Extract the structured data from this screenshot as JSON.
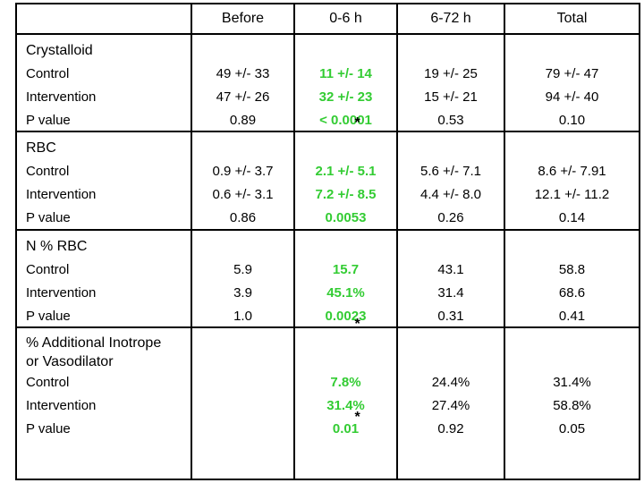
{
  "colors": {
    "background": "#ffffff",
    "text": "#000000",
    "border": "#000000",
    "highlight_green": "#33cc33"
  },
  "table": {
    "header": {
      "label_col": "",
      "before": "Before",
      "h0_6": "0-6 h",
      "h6_72": "6-72 h",
      "total": "Total"
    },
    "sections": [
      {
        "title_line1": "Crystalloid",
        "row_labels": [
          "Control",
          "Intervention",
          "P value"
        ],
        "before": [
          "49 +/- 33",
          "47 +/- 26",
          "0.89"
        ],
        "h0_6": [
          "11 +/- 14",
          "32 +/- 23",
          "< 0.0001"
        ],
        "h6_72": [
          "19 +/- 25",
          "15 +/- 21",
          "0.53"
        ],
        "total": [
          "79 +/- 47",
          "94 +/- 40",
          "0.10"
        ],
        "significance_marker": "*"
      },
      {
        "title_line1": "RBC",
        "row_labels": [
          "Control",
          "Intervention",
          "P value"
        ],
        "before": [
          "0.9 +/- 3.7",
          "0.6 +/- 3.1",
          "0.86"
        ],
        "h0_6": [
          "2.1 +/- 5.1",
          "7.2 +/- 8.5",
          "0.0053"
        ],
        "h6_72": [
          "5.6 +/- 7.1",
          "4.4 +/- 8.0",
          "0.26"
        ],
        "total": [
          "8.6 +/- 7.91",
          "12.1 +/- 11.2",
          "0.14"
        ]
      },
      {
        "title_line1": "N % RBC",
        "row_labels": [
          "Control",
          "Intervention",
          "P value"
        ],
        "before": [
          "5.9",
          "3.9",
          "1.0"
        ],
        "h0_6": [
          "15.7",
          "45.1%",
          "0.0023"
        ],
        "h6_72": [
          "43.1",
          "31.4",
          "0.31"
        ],
        "total": [
          "58.8",
          "68.6",
          "0.41"
        ],
        "significance_marker": "*"
      },
      {
        "title_line1": "% Additional Inotrope",
        "title_line2": "or Vasodilator",
        "row_labels": [
          "Control",
          "Intervention",
          "P value"
        ],
        "before": [
          "",
          "",
          ""
        ],
        "h0_6": [
          "7.8%",
          "31.4%",
          "0.01"
        ],
        "h6_72": [
          "24.4%",
          "27.4%",
          "0.92"
        ],
        "total": [
          "31.4%",
          "58.8%",
          "0.05"
        ],
        "significance_marker": "*"
      }
    ]
  }
}
